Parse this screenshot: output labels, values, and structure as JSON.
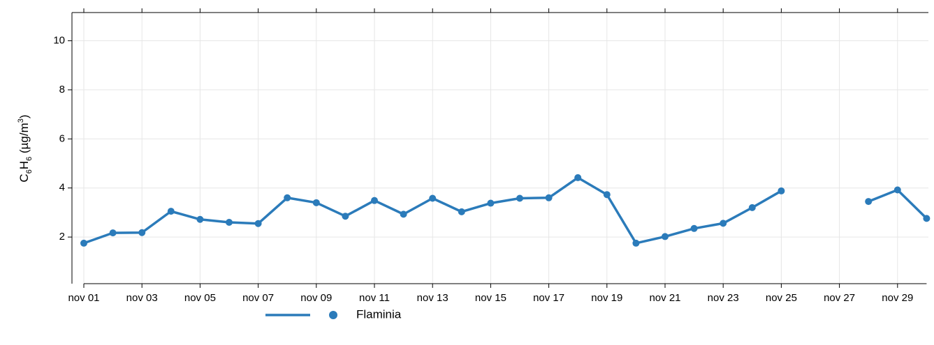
{
  "chart_data": {
    "type": "line",
    "ylabel": [
      "C",
      "6",
      "H",
      "6",
      " (µg/m",
      "3",
      ")"
    ],
    "categories": [
      "nov 01",
      null,
      "nov 03",
      null,
      "nov 05",
      null,
      "nov 07",
      null,
      "nov 09",
      null,
      "nov 11",
      null,
      "nov 13",
      null,
      "nov 15",
      null,
      "nov 17",
      null,
      "nov 19",
      null,
      "nov 21",
      null,
      "nov 23",
      null,
      "nov 25",
      null,
      "nov 27",
      null,
      "nov 29",
      null
    ],
    "series": [
      {
        "name": "Flaminia",
        "color": "#2b7bba",
        "values": [
          1.75,
          2.17,
          2.18,
          3.05,
          2.72,
          2.6,
          2.55,
          3.6,
          3.4,
          2.85,
          3.49,
          2.93,
          3.58,
          3.03,
          3.38,
          3.58,
          3.6,
          4.42,
          3.73,
          1.75,
          2.02,
          2.35,
          2.56,
          3.2,
          3.88,
          null,
          null,
          3.45,
          3.92,
          2.76
        ]
      }
    ],
    "ylim": [
      0.1,
      11.15
    ],
    "yticks": [
      2,
      4,
      6,
      8,
      10
    ],
    "grid": true
  }
}
